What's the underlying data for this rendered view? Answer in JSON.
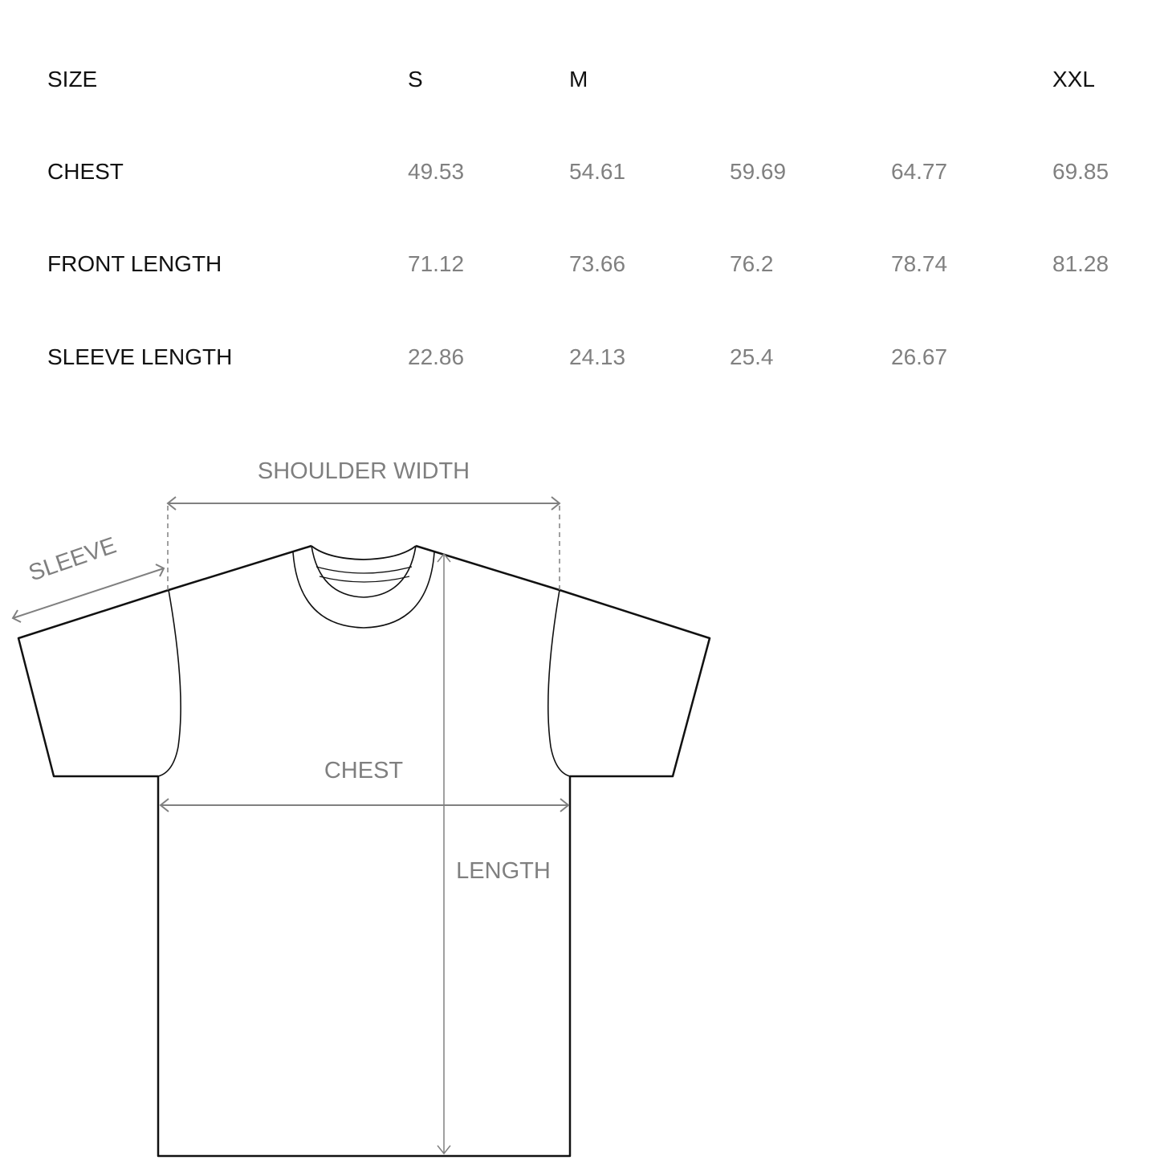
{
  "table": {
    "header": {
      "label": "SIZE",
      "sizes": [
        "S",
        "M",
        "",
        "",
        "XXL"
      ]
    },
    "rows": [
      {
        "label": "CHEST",
        "values": [
          "49.53",
          "54.61",
          "59.69",
          "64.77",
          "69.85"
        ]
      },
      {
        "label": "FRONT LENGTH",
        "values": [
          "71.12",
          "73.66",
          "76.2",
          "78.74",
          "81.28"
        ]
      },
      {
        "label": "SLEEVE LENGTH",
        "values": [
          "22.86",
          "24.13",
          "25.4",
          "26.67",
          ""
        ]
      }
    ]
  },
  "diagram": {
    "shoulder_width_label": "SHOULDER WIDTH",
    "sleeve_label": "SLEEVE",
    "chest_label": "CHEST",
    "length_label": "LENGTH",
    "outline_color": "#111111",
    "measure_color": "#808080"
  }
}
